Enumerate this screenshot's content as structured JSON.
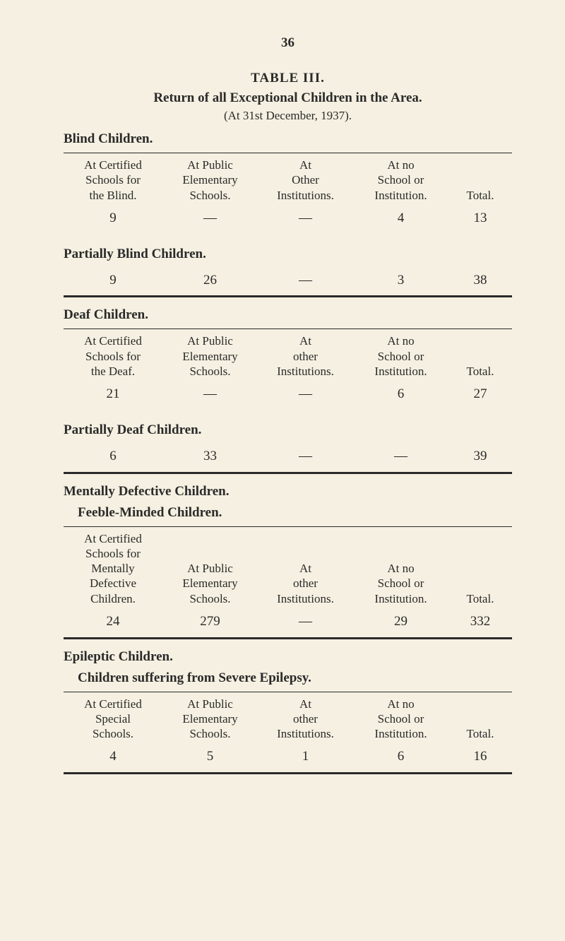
{
  "page_number": "36",
  "table_label": "TABLE III.",
  "main_title": "Return of all Exceptional Children in the Area.",
  "subtitle": "(At 31st December, 1937).",
  "blind": {
    "heading": "Blind Children.",
    "headers": {
      "c1": "At Certified\nSchools for\nthe Blind.",
      "c2": "At Public\nElementary\nSchools.",
      "c3": "At\nOther\nInstitutions.",
      "c4": "At no\nSchool or\nInstitution.",
      "c5": "Total."
    },
    "row": {
      "c1": "9",
      "c2": "—",
      "c3": "—",
      "c4": "4",
      "c5": "13"
    }
  },
  "partially_blind": {
    "heading": "Partially Blind Children.",
    "row": {
      "c1": "9",
      "c2": "26",
      "c3": "—",
      "c4": "3",
      "c5": "38"
    }
  },
  "deaf": {
    "heading": "Deaf Children.",
    "headers": {
      "c1": "At Certified\nSchools for\nthe Deaf.",
      "c2": "At Public\nElementary\nSchools.",
      "c3": "At\nother\nInstitutions.",
      "c4": "At no\nSchool or\nInstitution.",
      "c5": "Total."
    },
    "row": {
      "c1": "21",
      "c2": "—",
      "c3": "—",
      "c4": "6",
      "c5": "27"
    }
  },
  "partially_deaf": {
    "heading": "Partially Deaf Children.",
    "row": {
      "c1": "6",
      "c2": "33",
      "c3": "—",
      "c4": "—",
      "c5": "39"
    }
  },
  "mentally_defective": {
    "heading": "Mentally Defective Children.",
    "sub_heading": "Feeble-Minded Children.",
    "headers": {
      "c1": "At Certified\nSchools for\nMentally\nDefective\nChildren.",
      "c2": "At Public\nElementary\nSchools.",
      "c3": "At\nother\nInstitutions.",
      "c4": "At no\nSchool or\nInstitution.",
      "c5": "Total."
    },
    "row": {
      "c1": "24",
      "c2": "279",
      "c3": "—",
      "c4": "29",
      "c5": "332"
    }
  },
  "epileptic": {
    "heading": "Epileptic Children.",
    "sub_heading": "Children suffering from Severe Epilepsy.",
    "headers": {
      "c1": "At Certified\nSpecial\nSchools.",
      "c2": "At Public\nElementary\nSchools.",
      "c3": "At\nother\nInstitutions.",
      "c4": "At no\nSchool or\nInstitution.",
      "c5": "Total."
    },
    "row": {
      "c1": "4",
      "c2": "5",
      "c3": "1",
      "c4": "6",
      "c5": "16"
    }
  }
}
